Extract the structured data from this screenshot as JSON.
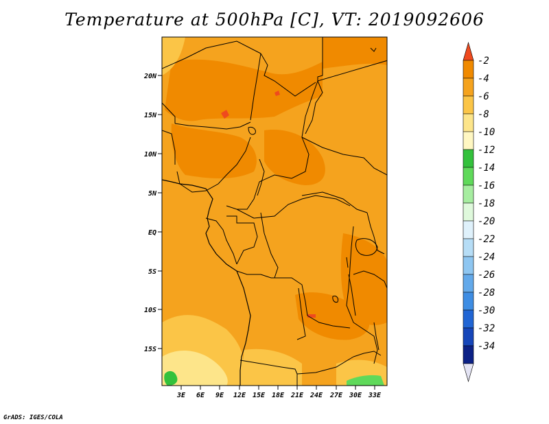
{
  "title": "Temperature at 500hPa [C], VT: 2019092606",
  "credit": "GrADS: IGES/COLA",
  "map": {
    "lat_ticks": [
      "20N",
      "15N",
      "10N",
      "5N",
      "EQ",
      "5S",
      "10S",
      "15S"
    ],
    "lon_ticks": [
      "3E",
      "6E",
      "9E",
      "12E",
      "15E",
      "18E",
      "21E",
      "24E",
      "27E",
      "30E",
      "33E"
    ]
  },
  "colorbar": {
    "labels": [
      "-2",
      "-4",
      "-6",
      "-8",
      "-10",
      "-12",
      "-14",
      "-16",
      "-18",
      "-20",
      "-22",
      "-24",
      "-26",
      "-28",
      "-30",
      "-32",
      "-34"
    ],
    "colors": [
      "#ef4a1e",
      "#f08a00",
      "#f5a31e",
      "#fbc547",
      "#fde58a",
      "#fff7c2",
      "#33c13c",
      "#5fd95a",
      "#a6eda0",
      "#dff9dc",
      "#dff1fb",
      "#b6ddf6",
      "#8ec6f1",
      "#63a9ea",
      "#3e8de3",
      "#2165d4",
      "#1646b9",
      "#0c2186",
      "#e4e4f4"
    ]
  }
}
